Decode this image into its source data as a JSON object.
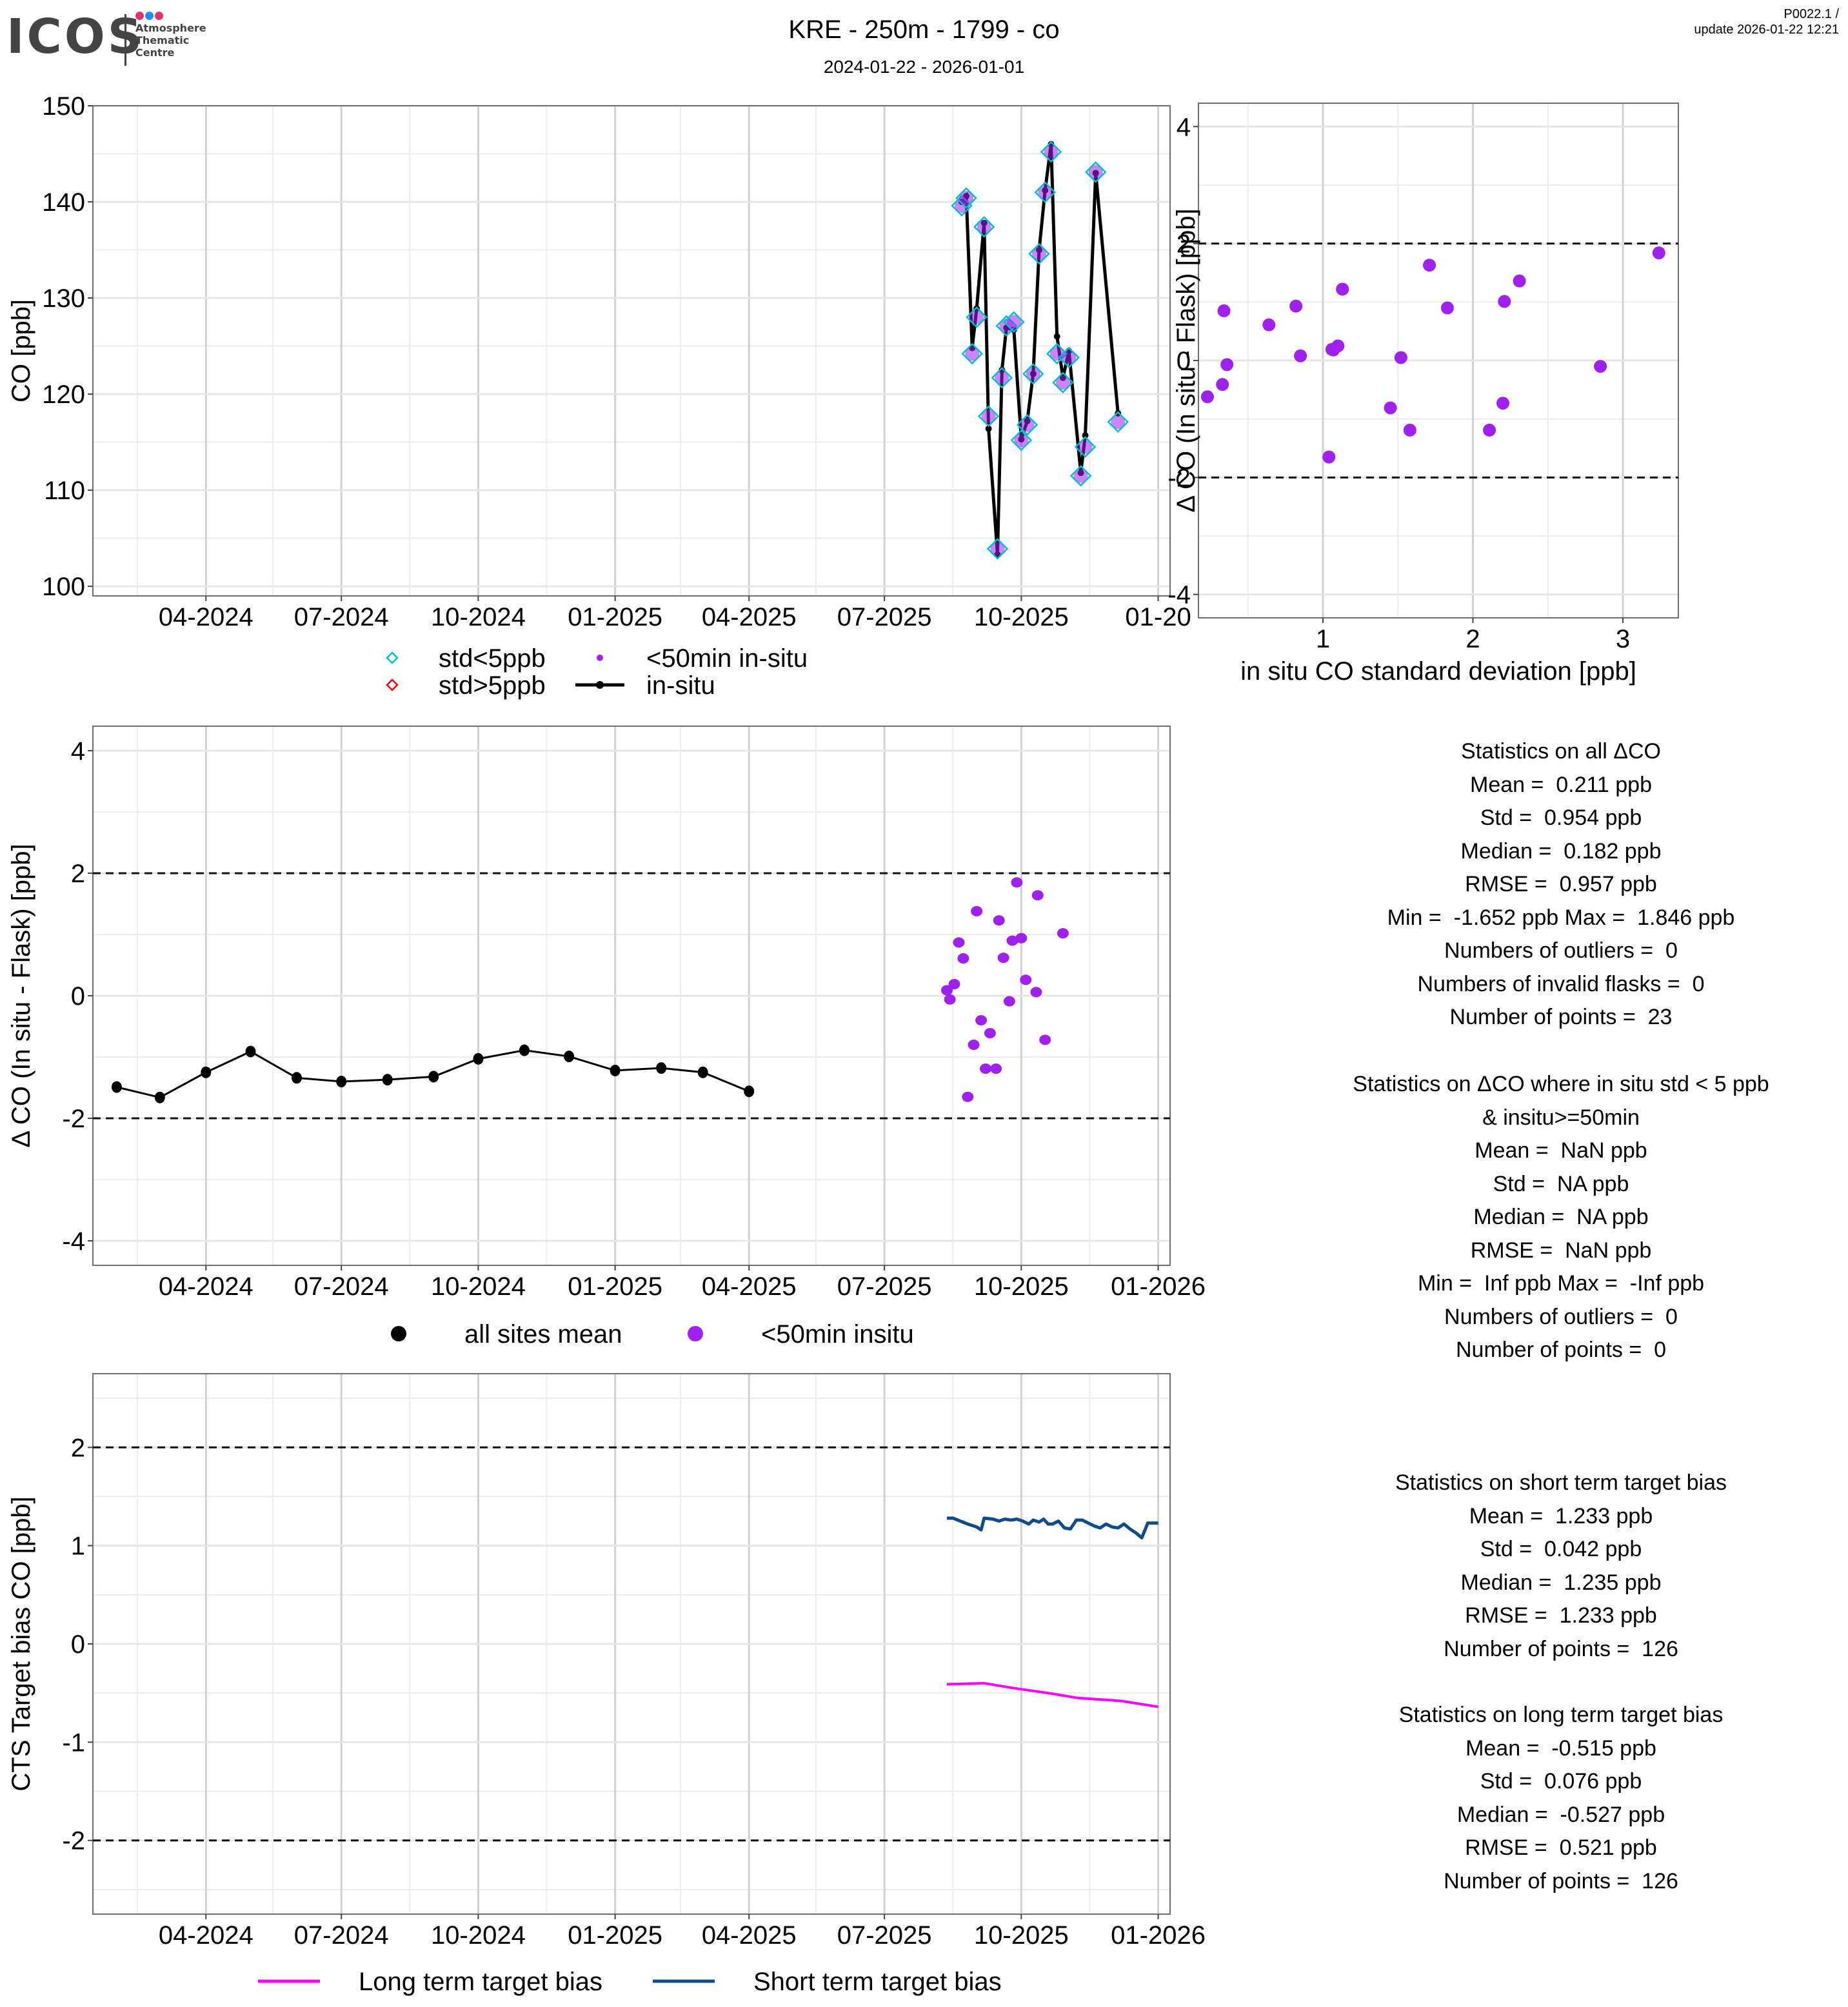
{
  "header": {
    "logo": {
      "word": "ICOS",
      "subtitle_lines": [
        "Atmosphere",
        "Thematic",
        "Centre"
      ],
      "dot_colors": [
        "#e5336f",
        "#1e90ff",
        "#e5336f"
      ]
    },
    "title": "KRE - 250m - 1799 - co",
    "subtitle": "2024-01-22 - 2026-01-01",
    "version_line1": "P0022.1 /",
    "version_line2": "update  2026-01-22 12:21"
  },
  "colors": {
    "std_lt5": "#00c0d0",
    "std_gt5": "#ff0000",
    "purple": "#a020f0",
    "insitu": "#000000",
    "long_term": "#ff00ff",
    "short_term": "#0f4c8a",
    "grid_major": "#d0d0d0",
    "grid_minor": "#ececec"
  },
  "chart_data": [
    {
      "id": "timeseries",
      "type": "line",
      "title": "",
      "xlabel": "",
      "ylabel": "CO [ppb]",
      "ylim": [
        99,
        150
      ],
      "xlim": [
        "2024-01-16",
        "2026-01-09"
      ],
      "yticks": [
        100,
        110,
        120,
        130,
        140,
        150
      ],
      "xticks": [
        {
          "date": "2024-04-01",
          "label": "04-2024"
        },
        {
          "date": "2024-07-01",
          "label": "07-2024"
        },
        {
          "date": "2024-10-01",
          "label": "10-2024"
        },
        {
          "date": "2025-01-01",
          "label": "01-2025"
        },
        {
          "date": "2025-04-01",
          "label": "04-2025"
        },
        {
          "date": "2025-07-01",
          "label": "07-2025"
        },
        {
          "date": "2025-10-01",
          "label": "10-2025"
        },
        {
          "date": "2026-01-01",
          "label": "01-20"
        }
      ],
      "grid": true,
      "legend": {
        "placement": "bottom",
        "entries": [
          {
            "label": "std<5ppb",
            "marker": "diamond",
            "color": "#00c0d0"
          },
          {
            "label": "<50min in-situ",
            "marker": "dot",
            "color": "#a020f0"
          },
          {
            "label": "std>5ppb",
            "marker": "diamond",
            "color": "#ff0000"
          },
          {
            "label": "in-situ",
            "marker": "line-dot",
            "color": "#000000"
          }
        ]
      },
      "series": [
        {
          "name": "flask (std<5ppb, <50min in-situ)",
          "x": [
            "2025-08-22",
            "2025-08-25",
            "2025-08-29",
            "2025-09-01",
            "2025-09-06",
            "2025-09-09",
            "2025-09-15",
            "2025-09-18",
            "2025-09-21",
            "2025-09-26",
            "2025-10-01",
            "2025-10-05",
            "2025-10-09",
            "2025-10-13",
            "2025-10-17",
            "2025-10-21",
            "2025-10-25",
            "2025-10-29",
            "2025-11-02",
            "2025-11-10",
            "2025-11-13",
            "2025-11-20",
            "2025-12-05"
          ],
          "values": [
            139.6,
            140.4,
            124.2,
            128.0,
            137.4,
            117.7,
            103.9,
            121.7,
            127.1,
            127.5,
            115.2,
            116.8,
            122.1,
            134.6,
            141.0,
            145.2,
            124.2,
            121.2,
            123.8,
            111.5,
            114.5,
            143.1,
            117.1
          ]
        },
        {
          "name": "in-situ",
          "x": [
            "2025-08-22",
            "2025-08-25",
            "2025-08-29",
            "2025-09-01",
            "2025-09-06",
            "2025-09-09",
            "2025-09-15",
            "2025-09-18",
            "2025-09-21",
            "2025-09-26",
            "2025-10-01",
            "2025-10-05",
            "2025-10-09",
            "2025-10-13",
            "2025-10-17",
            "2025-10-21",
            "2025-10-25",
            "2025-10-29",
            "2025-11-02",
            "2025-11-10",
            "2025-11-13",
            "2025-11-20",
            "2025-12-05"
          ],
          "values": [
            140.0,
            140.6,
            124.8,
            128.9,
            137.8,
            116.4,
            103.3,
            122.5,
            126.9,
            126.7,
            115.3,
            117.2,
            122.1,
            135.0,
            141.2,
            146.0,
            126.0,
            121.7,
            124.5,
            111.8,
            115.7,
            143.0,
            118.0
          ]
        }
      ]
    },
    {
      "id": "delta_vs_std",
      "type": "scatter",
      "title": "",
      "xlabel": "in situ CO standard deviation [ppb]",
      "ylabel": "Δ CO (In situ - Flask) [ppb]",
      "xlim": [
        0.17,
        3.37
      ],
      "ylim": [
        -4.4,
        4.4
      ],
      "xticks": [
        1,
        2,
        3
      ],
      "yticks": [
        -4,
        -2,
        0,
        2,
        4
      ],
      "hlines": [
        2,
        -2
      ],
      "grid": true,
      "series": [
        {
          "name": "<50min in-situ",
          "x": [
            0.23,
            0.33,
            0.34,
            0.36,
            0.64,
            0.82,
            0.85,
            1.04,
            1.07,
            1.1,
            1.13,
            1.45,
            1.52,
            1.58,
            1.71,
            1.83,
            2.11,
            2.2,
            2.21,
            2.31,
            2.85,
            3.24,
            1.06
          ],
          "y": [
            -0.62,
            -0.41,
            0.85,
            -0.07,
            0.61,
            0.93,
            0.08,
            -1.65,
            0.18,
            0.25,
            1.22,
            -0.81,
            0.05,
            -1.19,
            1.63,
            0.9,
            -1.19,
            -0.73,
            1.01,
            1.36,
            -0.1,
            1.84,
            0.19
          ]
        }
      ]
    },
    {
      "id": "delta_timeseries",
      "type": "scatter",
      "title": "",
      "xlabel": "",
      "ylabel": "Δ CO (In situ - Flask) [ppb]",
      "xlim": [
        "2024-01-16",
        "2026-01-09"
      ],
      "ylim": [
        -4.4,
        4.4
      ],
      "yticks": [
        -4,
        -2,
        0,
        2,
        4
      ],
      "hlines": [
        2,
        -2
      ],
      "xticks": [
        {
          "date": "2024-04-01",
          "label": "04-2024"
        },
        {
          "date": "2024-07-01",
          "label": "07-2024"
        },
        {
          "date": "2024-10-01",
          "label": "10-2024"
        },
        {
          "date": "2025-01-01",
          "label": "01-2025"
        },
        {
          "date": "2025-04-01",
          "label": "04-2025"
        },
        {
          "date": "2025-07-01",
          "label": "07-2025"
        },
        {
          "date": "2025-10-01",
          "label": "10-2025"
        },
        {
          "date": "2026-01-01",
          "label": "01-2026"
        }
      ],
      "grid": true,
      "legend": {
        "placement": "bottom",
        "entries": [
          {
            "label": "all sites mean",
            "marker": "dot",
            "color": "#000000"
          },
          {
            "label": "<50min insitu",
            "marker": "dot",
            "color": "#a020f0"
          }
        ]
      },
      "series": [
        {
          "name": "all sites mean",
          "x": [
            "2024-02-01",
            "2024-03-01",
            "2024-04-01",
            "2024-05-01",
            "2024-06-01",
            "2024-07-01",
            "2024-08-01",
            "2024-09-01",
            "2024-10-01",
            "2024-11-01",
            "2024-12-01",
            "2025-01-01",
            "2025-02-01",
            "2025-03-01",
            "2025-04-01"
          ],
          "values": [
            -1.49,
            -1.66,
            -1.25,
            -0.91,
            -1.34,
            -1.4,
            -1.37,
            -1.32,
            -1.03,
            -0.89,
            -0.99,
            -1.22,
            -1.18,
            -1.25,
            -1.56
          ]
        },
        {
          "name": "<50min insitu",
          "x": [
            "2025-08-12",
            "2025-08-14",
            "2025-08-17",
            "2025-08-20",
            "2025-08-23",
            "2025-08-26",
            "2025-08-30",
            "2025-09-01",
            "2025-09-04",
            "2025-09-07",
            "2025-09-10",
            "2025-09-14",
            "2025-09-16",
            "2025-09-19",
            "2025-09-23",
            "2025-09-25",
            "2025-09-28",
            "2025-10-01",
            "2025-10-04",
            "2025-10-11",
            "2025-10-12",
            "2025-10-17",
            "2025-10-29"
          ],
          "values": [
            0.09,
            -0.06,
            0.19,
            0.87,
            0.61,
            -1.65,
            -0.8,
            1.38,
            -0.4,
            -1.19,
            -0.61,
            -1.19,
            1.23,
            0.62,
            -0.09,
            0.9,
            1.85,
            0.94,
            0.26,
            0.06,
            1.64,
            -0.72,
            1.02
          ]
        }
      ]
    },
    {
      "id": "target_bias",
      "type": "line",
      "title": "",
      "xlabel": "",
      "ylabel": "CTS Target bias CO [ppb]",
      "xlim": [
        "2024-01-16",
        "2026-01-09"
      ],
      "ylim": [
        -2.75,
        2.75
      ],
      "yticks": [
        -2,
        -1,
        0,
        1,
        2
      ],
      "hlines": [
        2,
        -2
      ],
      "xticks": [
        {
          "date": "2024-04-01",
          "label": "04-2024"
        },
        {
          "date": "2024-07-01",
          "label": "07-2024"
        },
        {
          "date": "2024-10-01",
          "label": "10-2024"
        },
        {
          "date": "2025-01-01",
          "label": "01-2025"
        },
        {
          "date": "2025-04-01",
          "label": "04-2025"
        },
        {
          "date": "2025-07-01",
          "label": "07-2025"
        },
        {
          "date": "2025-10-01",
          "label": "10-2025"
        },
        {
          "date": "2026-01-01",
          "label": "01-2026"
        }
      ],
      "grid": true,
      "legend": {
        "placement": "bottom",
        "entries": [
          {
            "label": "Long term target bias",
            "marker": "line",
            "color": "#ff00ff"
          },
          {
            "label": "Short term target bias",
            "marker": "line",
            "color": "#0f4c8a"
          }
        ]
      },
      "series": [
        {
          "name": "Long term target bias",
          "x": [
            "2025-08-12",
            "2025-09-06",
            "2025-09-26",
            "2025-10-19",
            "2025-11-08",
            "2025-12-07",
            "2026-01-01"
          ],
          "values": [
            -0.41,
            -0.4,
            -0.45,
            -0.5,
            -0.55,
            -0.58,
            -0.64
          ]
        },
        {
          "name": "Short term target bias",
          "x": [
            "2025-08-12",
            "2025-08-16",
            "2025-08-26",
            "2025-09-01",
            "2025-09-04",
            "2025-09-06",
            "2025-09-12",
            "2025-09-16",
            "2025-09-20",
            "2025-09-24",
            "2025-09-28",
            "2025-10-02",
            "2025-10-06",
            "2025-10-09",
            "2025-10-13",
            "2025-10-16",
            "2025-10-19",
            "2025-10-22",
            "2025-10-26",
            "2025-10-30",
            "2025-11-03",
            "2025-11-07",
            "2025-11-11",
            "2025-11-15",
            "2025-11-19",
            "2025-11-23",
            "2025-11-27",
            "2025-12-01",
            "2025-12-05",
            "2025-12-09",
            "2025-12-13",
            "2025-12-17",
            "2025-12-21",
            "2025-12-25",
            "2025-12-29",
            "2026-01-01"
          ],
          "values": [
            1.28,
            1.28,
            1.22,
            1.19,
            1.16,
            1.28,
            1.27,
            1.25,
            1.27,
            1.26,
            1.27,
            1.25,
            1.22,
            1.26,
            1.24,
            1.27,
            1.22,
            1.22,
            1.25,
            1.18,
            1.17,
            1.26,
            1.26,
            1.23,
            1.2,
            1.18,
            1.22,
            1.19,
            1.18,
            1.22,
            1.17,
            1.13,
            1.08,
            1.23,
            1.23,
            1.23
          ]
        }
      ]
    }
  ],
  "stats": {
    "all_delta": {
      "heading": "Statistics on all ΔCO",
      "lines": [
        "Mean =  0.211 ppb",
        "Std =  0.954 ppb",
        "Median =  0.182 ppb",
        "RMSE =  0.957 ppb",
        "Min =  -1.652 ppb Max =  1.846 ppb",
        "Numbers of outliers =  0",
        "Numbers of invalid flasks =  0",
        "Number of points =  23"
      ]
    },
    "filtered_delta": {
      "heading": "Statistics on ΔCO where in situ std < 5 ppb",
      "heading2": "& insitu>=50min",
      "lines": [
        "Mean =  NaN ppb",
        "Std =  NA ppb",
        "Median =  NA ppb",
        "RMSE =  NaN ppb",
        "Min =  Inf ppb Max =  -Inf ppb",
        "Numbers of outliers =  0",
        "Number of points =  0"
      ]
    },
    "short_term": {
      "heading": "Statistics on short term target bias",
      "lines": [
        "Mean =  1.233 ppb",
        "Std =  0.042 ppb",
        "Median =  1.235 ppb",
        "RMSE =  1.233 ppb",
        "Number of points =  126"
      ]
    },
    "long_term": {
      "heading": "Statistics on long term target bias",
      "lines": [
        "Mean =  -0.515 ppb",
        "Std =  0.076 ppb",
        "Median =  -0.527 ppb",
        "RMSE =  0.521 ppb",
        "Number of points =  126"
      ]
    }
  }
}
